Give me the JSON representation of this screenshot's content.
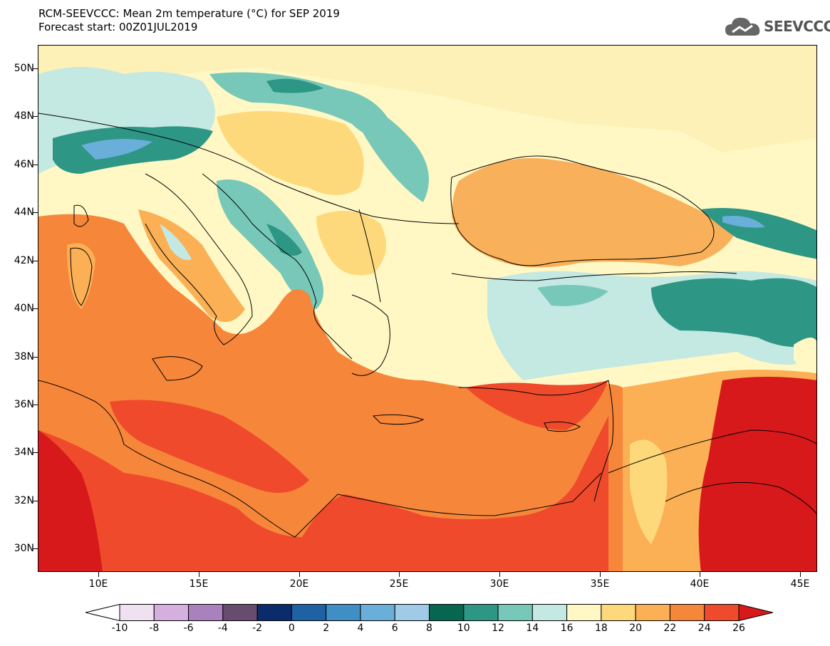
{
  "header": {
    "title_line1": "RCM-SEEVCCC: Mean 2m temperature (°C) for SEP 2019",
    "title_line2": "Forecast start: 00Z01JUL2019"
  },
  "logo": {
    "text": "SEEVCCC",
    "icon": "cloud-icon"
  },
  "map": {
    "lat_labels": [
      "50N",
      "48N",
      "46N",
      "44N",
      "42N",
      "40N",
      "38N",
      "36N",
      "34N",
      "32N",
      "30N"
    ],
    "lon_labels": [
      "10E",
      "15E",
      "20E",
      "25E",
      "30E",
      "35E",
      "40E",
      "45E"
    ],
    "colors": {
      "sea_med": "#f4863c",
      "land_hot": "#e0201f",
      "land_warm": "#f04f2d",
      "black_sea": "#f8b05a",
      "cool_teal": "#2e9a8a",
      "mild": "#fde4a0"
    }
  },
  "colorbar": {
    "labels": [
      "-10",
      "-8",
      "-6",
      "-4",
      "-2",
      "0",
      "2",
      "4",
      "6",
      "8",
      "10",
      "12",
      "14",
      "16",
      "18",
      "20",
      "22",
      "24",
      "26"
    ],
    "colors": [
      "#ffffff",
      "#efe1f2",
      "#d5b0de",
      "#a982bd",
      "#674c70",
      "#0b2c6b",
      "#1e62a3",
      "#3f8fc6",
      "#6aafd9",
      "#9fcbe6",
      "#06664f",
      "#2d9684",
      "#77c8b8",
      "#c4e8e2",
      "#fff8c4",
      "#fdd97c",
      "#fbb055",
      "#f6863a",
      "#ef4a2c",
      "#d8191c"
    ]
  }
}
